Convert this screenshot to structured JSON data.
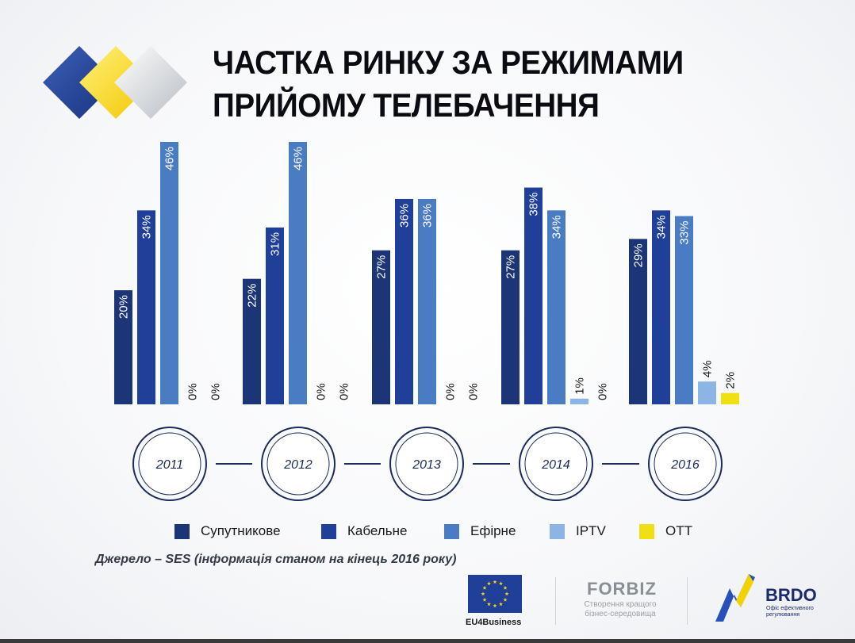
{
  "title_lines": [
    "ЧАСТКА РИНКУ ЗА РЕЖИМАМИ",
    "ПРИЙОМУ ТЕЛЕБАЧЕННЯ"
  ],
  "source": "Джерело – SES (інформація станом на кінець 2016 року)",
  "logos": {
    "eu_caption": "EU4Business",
    "forbiz_name": "FORBIZ",
    "forbiz_tagline": "Створення кращого бізнес-середовища",
    "brdo_name": "BRDO",
    "brdo_tagline": "Офіс ефективного регулювання"
  },
  "colors": {
    "satellite": "#1b3576",
    "cable": "#1f3f99",
    "terrestrial": "#4a7cc4",
    "iptv": "#8cb4e4",
    "ott": "#f0df12",
    "timeline": "#1d2a5c"
  },
  "chart_data": {
    "type": "bar",
    "title": "ЧАСТКА РИНКУ ЗА РЕЖИМАМИ ПРИЙОМУ ТЕЛЕБАЧЕННЯ",
    "categories": [
      "2011",
      "2012",
      "2013",
      "2014",
      "2016"
    ],
    "unit": "%",
    "ylim": [
      0,
      46
    ],
    "grid": false,
    "legend_position": "bottom",
    "series": [
      {
        "name": "Супутникове",
        "color_key": "satellite",
        "values": [
          20,
          22,
          27,
          27,
          29
        ]
      },
      {
        "name": "Кабельне",
        "color_key": "cable",
        "values": [
          34,
          31,
          36,
          38,
          34
        ]
      },
      {
        "name": "Ефірне",
        "color_key": "terrestrial",
        "values": [
          46,
          46,
          36,
          34,
          33
        ]
      },
      {
        "name": "IPTV",
        "color_key": "iptv",
        "values": [
          0,
          0,
          0,
          1,
          4
        ]
      },
      {
        "name": "OTT",
        "color_key": "ott",
        "values": [
          0,
          0,
          0,
          0,
          2
        ]
      }
    ]
  }
}
